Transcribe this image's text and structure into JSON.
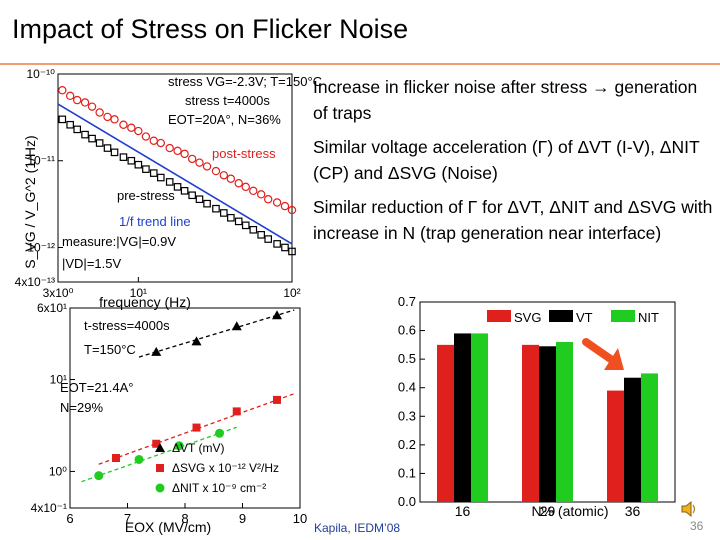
{
  "slide": {
    "title": "Impact of Stress on Flicker Noise",
    "bullets": [
      "Increase in flicker noise after stress → generation of traps",
      "Similar voltage acceleration (Γ) of ΔVT (I-V), ΔNIT (CP) and ΔSVG (Noise)",
      "Similar reduction of Γ for ΔVT, ΔNIT and ΔSVG with increase in N (trap generation near interface)"
    ],
    "citation": "Kapila, IEDM’08",
    "slide_number": "36",
    "speaker_icon": "speaker-icon"
  },
  "colors": {
    "accent_rule": "#f0a070",
    "red": "#e0201c",
    "green": "#1fcc1f",
    "blue": "#1f3fcc",
    "arrow": "#f05020"
  },
  "chart_data": [
    {
      "type": "scatter",
      "name": "noise-spectrum",
      "xlabel": "frequency (Hz)",
      "ylabel": "S_VG / V_G^2 (1/Hz)",
      "x_scale": "log",
      "y_scale": "log",
      "xlim": [
        3,
        100
      ],
      "ylim": [
        4e-13,
        1e-10
      ],
      "x_ticks": [
        "3x10⁰",
        "10¹",
        "10²"
      ],
      "y_ticks": [
        "10⁻¹⁰",
        "10⁻¹¹",
        "10⁻¹²",
        "4x10⁻¹³"
      ],
      "annotations": [
        "stress VG=-2.3V; T=150°C",
        "stress t=4000s",
        "EOT=20A°, N=36%",
        "post-stress",
        "pre-stress",
        "1/f trend line",
        "measure:|VG|=0.9V",
        "|VD|=1.5V"
      ],
      "series": [
        {
          "name": "post-stress",
          "x": [
            3.2,
            3.6,
            4,
            4.5,
            5,
            5.6,
            6.3,
            7,
            8,
            9,
            10,
            11.2,
            12.6,
            14,
            16,
            18,
            20,
            22.4,
            25,
            28,
            32,
            36,
            40,
            45,
            50,
            56,
            63,
            70,
            80,
            90,
            100
          ],
          "y": [
            6.5e-11,
            5.6e-11,
            5e-11,
            4.7e-11,
            4.2e-11,
            3.6e-11,
            3.2e-11,
            3e-11,
            2.6e-11,
            2.4e-11,
            2.2e-11,
            1.9e-11,
            1.7e-11,
            1.6e-11,
            1.4e-11,
            1.3e-11,
            1.2e-11,
            1.05e-11,
            9.5e-12,
            8.6e-12,
            7.6e-12,
            6.8e-12,
            6.2e-12,
            5.5e-12,
            5e-12,
            4.5e-12,
            4.1e-12,
            3.6e-12,
            3.3e-12,
            3e-12,
            2.7e-12
          ]
        },
        {
          "name": "pre-stress",
          "x": [
            3.2,
            3.6,
            4,
            4.5,
            5,
            5.6,
            6.3,
            7,
            8,
            9,
            10,
            11.2,
            12.6,
            14,
            16,
            18,
            20,
            22.4,
            25,
            28,
            32,
            36,
            40,
            45,
            50,
            56,
            63,
            70,
            80,
            90,
            100
          ],
          "y": [
            3e-11,
            2.6e-11,
            2.3e-11,
            2e-11,
            1.8e-11,
            1.6e-11,
            1.4e-11,
            1.25e-11,
            1.1e-11,
            1e-11,
            9e-12,
            8e-12,
            7.2e-12,
            6.4e-12,
            5.7e-12,
            5e-12,
            4.5e-12,
            4e-12,
            3.6e-12,
            3.2e-12,
            2.8e-12,
            2.5e-12,
            2.2e-12,
            2e-12,
            1.8e-12,
            1.6e-12,
            1.4e-12,
            1.25e-12,
            1.1e-12,
            1e-12,
            9e-13
          ]
        }
      ],
      "trend_line": {
        "name": "1/f trend line",
        "x": [
          3,
          100
        ],
        "y": [
          4.5e-11,
          1.1e-12
        ]
      }
    },
    {
      "type": "scatter",
      "name": "voltage-acceleration",
      "xlabel": "EOX (MV/cm)",
      "x_scale": "linear",
      "y_scale": "log",
      "xlim": [
        6,
        10
      ],
      "ylim": [
        0.4,
        60
      ],
      "x_ticks": [
        "6",
        "7",
        "8",
        "9",
        "10"
      ],
      "y_ticks": [
        "6x10¹",
        "10¹",
        "10⁰",
        "4x10⁻¹"
      ],
      "annotations": [
        "t-stress=4000s",
        "T=150°C",
        "EOT=21.4A°",
        "N=29%"
      ],
      "legend": [
        "ΔVT (mV)",
        "ΔSVG x 10⁻¹² V²/Hz",
        "ΔNIT x 10⁻⁹ cm⁻²"
      ],
      "series": [
        {
          "name": "ΔVT (mV)",
          "x": [
            7.5,
            8.2,
            8.9,
            9.6
          ],
          "y": [
            20,
            26,
            38,
            50
          ]
        },
        {
          "name": "ΔSVG x 10⁻¹² V²/Hz",
          "x": [
            6.8,
            7.5,
            8.2,
            8.9,
            9.6
          ],
          "y": [
            1.4,
            2.0,
            3.0,
            4.5,
            6.0
          ]
        },
        {
          "name": "ΔNIT x 10⁻⁹ cm⁻²",
          "x": [
            6.5,
            7.2,
            7.9,
            8.6
          ],
          "y": [
            0.9,
            1.35,
            1.9,
            2.6
          ]
        }
      ]
    },
    {
      "type": "bar",
      "name": "gamma-vs-nitrogen",
      "xlabel": "N% (atomic)",
      "categories": [
        "16",
        "29",
        "36"
      ],
      "ylim": [
        0,
        0.7
      ],
      "y_ticks": [
        "0.0",
        "0.1",
        "0.2",
        "0.3",
        "0.4",
        "0.5",
        "0.6",
        "0.7"
      ],
      "series": [
        {
          "name": "SVG",
          "color": "#e0201c",
          "values": [
            0.55,
            0.55,
            0.39
          ]
        },
        {
          "name": "VT",
          "color": "#000000",
          "values": [
            0.59,
            0.545,
            0.435
          ]
        },
        {
          "name": "NIT",
          "color": "#1fcc1f",
          "values": [
            0.59,
            0.56,
            0.45
          ]
        }
      ]
    }
  ]
}
